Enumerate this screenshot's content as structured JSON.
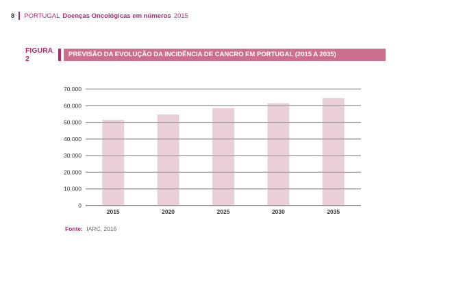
{
  "header": {
    "page_number": "8",
    "country": "PORTUGAL",
    "publication": "Doenças Oncológicas em números",
    "year": "2015"
  },
  "figure": {
    "label": "FIGURA 2",
    "title": "PREVISÃO DA EVOLUÇÃO DA INCIDÊNCIA DE CANCRO EM PORTUGAL (2015 A 2035)"
  },
  "chart_data": {
    "type": "bar",
    "categories": [
      "2015",
      "2020",
      "2025",
      "2030",
      "2035"
    ],
    "values": [
      51500,
      54700,
      58500,
      61500,
      64600
    ],
    "ylim": [
      0,
      70000
    ],
    "yticks": [
      0,
      10000,
      20000,
      30000,
      40000,
      50000,
      60000,
      70000
    ],
    "ytick_labels": [
      "0",
      "10.000",
      "20.000",
      "30.000",
      "40.000",
      "50.000",
      "60.000",
      "70.000"
    ],
    "grid": true,
    "bar_color": "#ebcfd7",
    "grid_color": "#8a8a8a"
  },
  "source": {
    "label": "Fonte:",
    "text": "IARC, 2016"
  },
  "colors": {
    "accent": "#b4296b",
    "title_box": "#cc6f8f"
  }
}
